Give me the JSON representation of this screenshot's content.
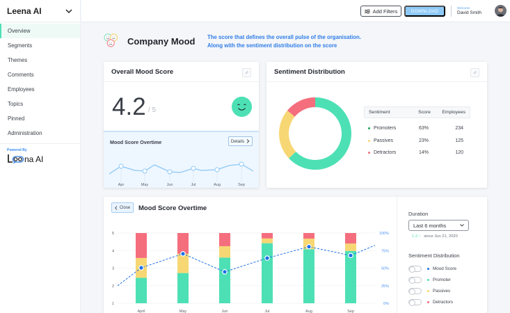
{
  "app": {
    "name": "Leena AI"
  },
  "sidebar": {
    "items": [
      {
        "label": "Overview",
        "active": true
      },
      {
        "label": "Segments"
      },
      {
        "label": "Themes"
      },
      {
        "label": "Comments"
      },
      {
        "label": "Employees"
      },
      {
        "label": "Topics"
      },
      {
        "label": "Pinned"
      },
      {
        "label": "Administration"
      }
    ],
    "powered_by": "Powered By",
    "powered_logo": "Leena AI"
  },
  "topbar": {
    "filter_label": "Add Filters",
    "download_label": "DOWNLOAD",
    "welcome_label": "Welcome",
    "user_name": "David Smith"
  },
  "header": {
    "title": "Company Mood",
    "desc_line1": "The score that defines the overall pulse of the organisation.",
    "desc_line2": "Along with the sentiment distribution on the score"
  },
  "mood_card": {
    "title": "Overall Mood Score",
    "score": "4.2",
    "out_of": "/ 5",
    "sub_title": "Mood Score Overtime",
    "details_label": "Details",
    "spark_months": [
      "Apr",
      "May",
      "Jun",
      "Jul",
      "Aug",
      "Sep"
    ]
  },
  "sentiment_card": {
    "title": "Sentiment Distribution",
    "headers": [
      "Sentiment",
      "Score",
      "Employees"
    ],
    "rows": [
      {
        "name": "Promoters",
        "score": "63%",
        "employees": "234"
      },
      {
        "name": "Passives",
        "score": "23%",
        "employees": "125"
      },
      {
        "name": "Detractors",
        "score": "14%",
        "employees": "120"
      }
    ]
  },
  "trend_card": {
    "close_label": "Close",
    "title": "Mood Score Overtime",
    "duration_label": "Duration",
    "duration_value": "Last 6 months",
    "delta_value": "1.2 ↑",
    "delta_text": "since Jun 21, 2020",
    "dist_label": "Sentiment Distribution",
    "toggles": [
      "Mood Score",
      "Promoter",
      "Passives",
      "Detractors"
    ]
  },
  "colors": {
    "promoter": "#4de0b5",
    "passive": "#f7d774",
    "detractor": "#f46e7d",
    "mood": "#1a6fe8",
    "accent": "#2f7de8"
  },
  "chart_data": [
    {
      "type": "donut",
      "title": "Sentiment Distribution",
      "categories": [
        "Promoters",
        "Passives",
        "Detractors"
      ],
      "values": [
        63,
        23,
        14
      ]
    },
    {
      "type": "line",
      "title": "Mood Score Overtime (sparkline)",
      "categories": [
        "Apr",
        "May",
        "Jun",
        "Jul",
        "Aug",
        "Sep"
      ],
      "values": [
        3.6,
        3.3,
        3.2,
        3.35,
        3.3,
        3.75
      ]
    },
    {
      "type": "bar",
      "stacked": true,
      "title": "Mood Score Overtime",
      "categories": [
        "April",
        "May",
        "Jun",
        "Jul",
        "Aug",
        "Sep"
      ],
      "yticks": [
        "1",
        "2",
        "3",
        "4",
        "5"
      ],
      "ylim": [
        1,
        5
      ],
      "y2ticks": [
        "0%",
        "25%",
        "50%",
        "75%",
        "100%"
      ],
      "y2lim": [
        0,
        100
      ],
      "series": [
        {
          "name": "Promoter",
          "values": [
            1.45,
            1.72,
            2.6,
            3.42,
            3.08,
            2.98
          ]
        },
        {
          "name": "Passives",
          "values": [
            1.13,
            1.1,
            0.65,
            0.27,
            0.6,
            0.42
          ]
        },
        {
          "name": "Detractors",
          "values": [
            1.42,
            1.18,
            0.75,
            0.31,
            0.32,
            0.6
          ]
        }
      ],
      "line": {
        "name": "Mood Score",
        "values": [
          3.02,
          3.82,
          2.79,
          3.57,
          4.22,
          3.72
        ],
        "lead_in": 2.0,
        "lead_out": 4.3
      }
    }
  ]
}
